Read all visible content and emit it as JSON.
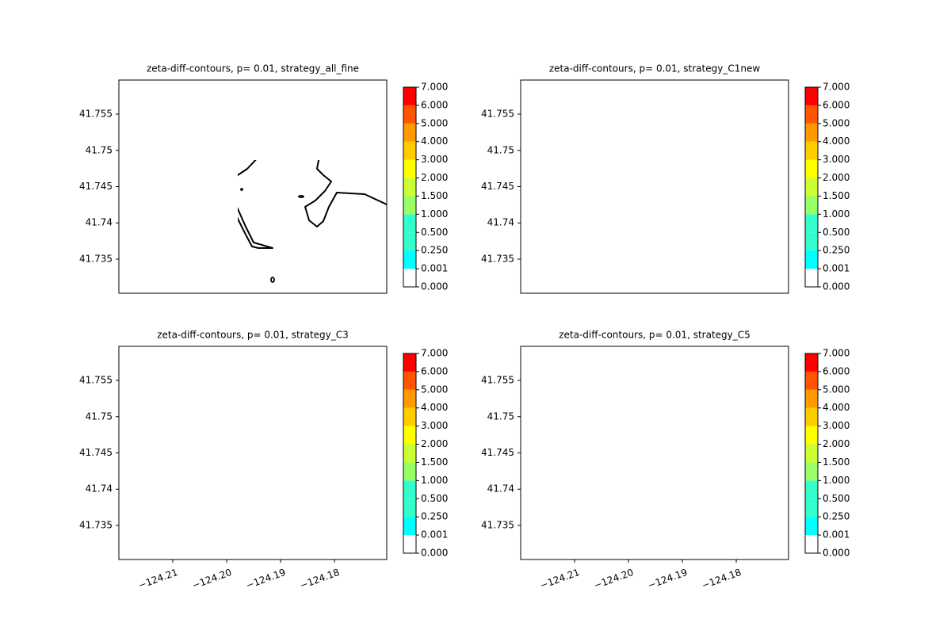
{
  "chart_data": [
    {
      "type": "contour",
      "title": "zeta-diff-contours, p= 0.01, strategy_all_fine",
      "xlim": [
        -124.22,
        -124.1703
      ],
      "ylim": [
        41.7303,
        41.7597
      ],
      "yticks": [
        41.735,
        41.74,
        41.745,
        41.75,
        41.755
      ],
      "colorbar": {
        "levels": [
          {
            "value": 0,
            "label": "0.000"
          },
          {
            "value": 0.001,
            "label": "0.001"
          },
          {
            "value": 0.25,
            "label": "0.250"
          },
          {
            "value": 0.5,
            "label": "0.500"
          },
          {
            "value": 1,
            "label": "1.000"
          },
          {
            "value": 1.5,
            "label": "1.500"
          },
          {
            "value": 2,
            "label": "2.000"
          },
          {
            "value": 3,
            "label": "3.000"
          },
          {
            "value": 4,
            "label": "4.000"
          },
          {
            "value": 5,
            "label": "5.000"
          },
          {
            "value": 6,
            "label": "6.000"
          },
          {
            "value": 7,
            "label": "7.000"
          }
        ],
        "colors": [
          "#ffffff",
          "#00ffff",
          "#33ffcc",
          "#33ffcc",
          "#99ff66",
          "#ccff33",
          "#ffff00",
          "#ffcc00",
          "#ff9900",
          "#ff5500",
          "#ff0000"
        ]
      }
    },
    {
      "type": "contour",
      "title": "zeta-diff-contours, p= 0.01, strategy_C1new",
      "xlim": [
        -124.22,
        -124.1703
      ],
      "ylim": [
        41.7303,
        41.7597
      ],
      "yticks": [
        41.735,
        41.74,
        41.745,
        41.75,
        41.755
      ],
      "colorbar": {
        "levels": [
          {
            "value": 0,
            "label": "0.000"
          },
          {
            "value": 0.001,
            "label": "0.001"
          },
          {
            "value": 0.25,
            "label": "0.250"
          },
          {
            "value": 0.5,
            "label": "0.500"
          },
          {
            "value": 1,
            "label": "1.000"
          },
          {
            "value": 1.5,
            "label": "1.500"
          },
          {
            "value": 2,
            "label": "2.000"
          },
          {
            "value": 3,
            "label": "3.000"
          },
          {
            "value": 4,
            "label": "4.000"
          },
          {
            "value": 5,
            "label": "5.000"
          },
          {
            "value": 6,
            "label": "6.000"
          },
          {
            "value": 7,
            "label": "7.000"
          }
        ],
        "colors": [
          "#ffffff",
          "#00ffff",
          "#33ffcc",
          "#33ffcc",
          "#99ff66",
          "#ccff33",
          "#ffff00",
          "#ffcc00",
          "#ff9900",
          "#ff5500",
          "#ff0000"
        ]
      }
    },
    {
      "type": "contour",
      "title": "zeta-diff-contours, p= 0.01, strategy_C3",
      "xlim": [
        -124.22,
        -124.1703
      ],
      "ylim": [
        41.7303,
        41.7597
      ],
      "xticks": [
        {
          "value": -124.21,
          "label": "−124.21"
        },
        {
          "value": -124.2,
          "label": "−124.20"
        },
        {
          "value": -124.19,
          "label": "−124.19"
        },
        {
          "value": -124.18,
          "label": "−124.18"
        }
      ],
      "yticks": [
        41.735,
        41.74,
        41.745,
        41.75,
        41.755
      ],
      "colorbar": {
        "levels": [
          {
            "value": 0,
            "label": "0.000"
          },
          {
            "value": 0.001,
            "label": "0.001"
          },
          {
            "value": 0.25,
            "label": "0.250"
          },
          {
            "value": 0.5,
            "label": "0.500"
          },
          {
            "value": 1,
            "label": "1.000"
          },
          {
            "value": 1.5,
            "label": "1.500"
          },
          {
            "value": 2,
            "label": "2.000"
          },
          {
            "value": 3,
            "label": "3.000"
          },
          {
            "value": 4,
            "label": "4.000"
          },
          {
            "value": 5,
            "label": "5.000"
          },
          {
            "value": 6,
            "label": "6.000"
          },
          {
            "value": 7,
            "label": "7.000"
          }
        ],
        "colors": [
          "#ffffff",
          "#00ffff",
          "#33ffcc",
          "#33ffcc",
          "#99ff66",
          "#ccff33",
          "#ffff00",
          "#ffcc00",
          "#ff9900",
          "#ff5500",
          "#ff0000"
        ]
      }
    },
    {
      "type": "contour",
      "title": "zeta-diff-contours, p= 0.01, strategy_C5",
      "xlim": [
        -124.22,
        -124.1703
      ],
      "ylim": [
        41.7303,
        41.7597
      ],
      "xticks": [
        {
          "value": -124.21,
          "label": "−124.21"
        },
        {
          "value": -124.2,
          "label": "−124.20"
        },
        {
          "value": -124.19,
          "label": "−124.19"
        },
        {
          "value": -124.18,
          "label": "−124.18"
        }
      ],
      "yticks": [
        41.735,
        41.74,
        41.745,
        41.75,
        41.755
      ],
      "colorbar": {
        "levels": [
          {
            "value": 0,
            "label": "0.000"
          },
          {
            "value": 0.001,
            "label": "0.001"
          },
          {
            "value": 0.25,
            "label": "0.250"
          },
          {
            "value": 0.5,
            "label": "0.500"
          },
          {
            "value": 1,
            "label": "1.000"
          },
          {
            "value": 1.5,
            "label": "1.500"
          },
          {
            "value": 2,
            "label": "2.000"
          },
          {
            "value": 3,
            "label": "3.000"
          },
          {
            "value": 4,
            "label": "4.000"
          },
          {
            "value": 5,
            "label": "5.000"
          },
          {
            "value": 6,
            "label": "6.000"
          },
          {
            "value": 7,
            "label": "7.000"
          }
        ],
        "colors": [
          "#ffffff",
          "#00ffff",
          "#33ffcc",
          "#33ffcc",
          "#99ff66",
          "#ccff33",
          "#ffff00",
          "#ffcc00",
          "#ff9900",
          "#ff5500",
          "#ff0000"
        ]
      }
    }
  ]
}
